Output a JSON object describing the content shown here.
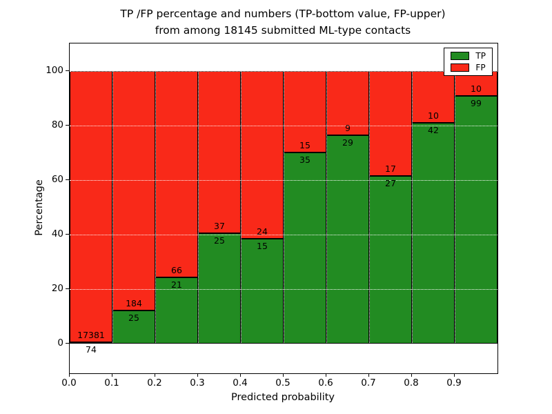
{
  "chart_data": {
    "type": "bar",
    "stacked": true,
    "title_line1": "TP /FP percentage and numbers (TP-bottom value, FP-upper)",
    "title_line2": "from among 18145 submitted ML-type contacts",
    "total_contacts": 18145,
    "xlabel": "Predicted probability",
    "ylabel": "Percentage",
    "xlim": [
      0.0,
      1.0
    ],
    "ylim": [
      -11,
      110
    ],
    "bin_width": 0.1,
    "categories": [
      0.0,
      0.1,
      0.2,
      0.3,
      0.4,
      0.5,
      0.6,
      0.7,
      0.8,
      0.9
    ],
    "xticks": [
      "0.0",
      "0.1",
      "0.2",
      "0.3",
      "0.4",
      "0.5",
      "0.6",
      "0.7",
      "0.8",
      "0.9"
    ],
    "yticks": [
      0,
      20,
      40,
      60,
      80,
      100
    ],
    "series": [
      {
        "name": "TP",
        "color": "#228b22",
        "counts": [
          74,
          25,
          21,
          25,
          15,
          35,
          29,
          27,
          42,
          99
        ]
      },
      {
        "name": "FP",
        "color": "#f92919",
        "counts": [
          17381,
          184,
          66,
          37,
          24,
          15,
          9,
          17,
          10,
          10
        ]
      }
    ],
    "tp_percent": [
      0.42,
      11.96,
      24.14,
      40.32,
      38.46,
      70.0,
      76.32,
      61.36,
      80.77,
      90.83
    ],
    "legend": {
      "position": "upper right",
      "entries": [
        "TP",
        "FP"
      ]
    },
    "grid": {
      "linestyle": "dotted",
      "color": "#ffffff"
    }
  }
}
